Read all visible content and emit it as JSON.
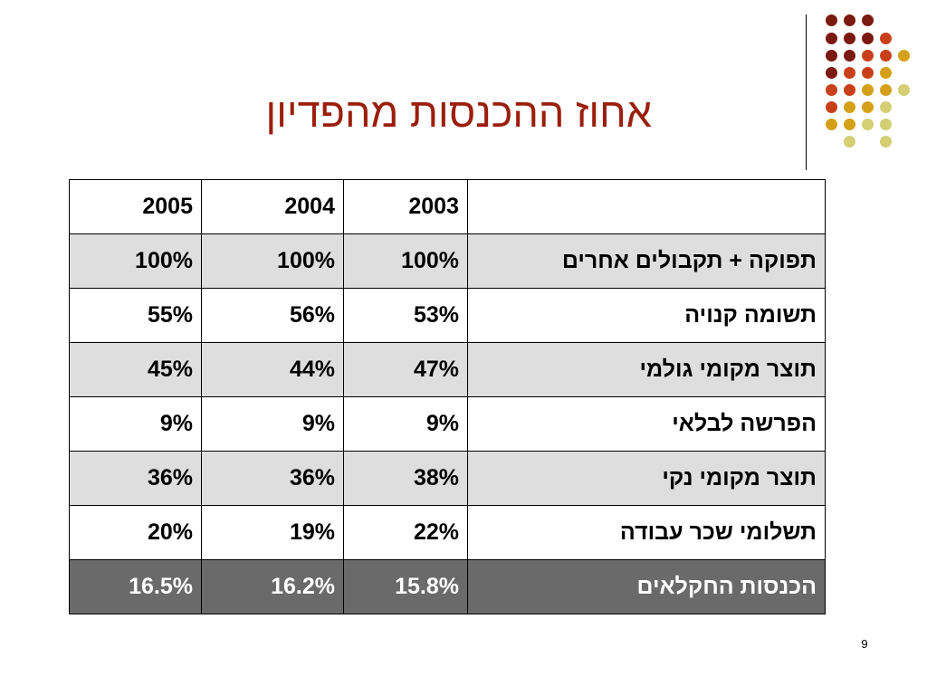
{
  "slide": {
    "title": "אחוז ההכנסות מהפדיון",
    "page_number": "9"
  },
  "colors": {
    "title": "#9a1f0c",
    "dots": [
      "#7b1a10",
      "#c8401a",
      "#d4a017",
      "#d3cf72"
    ],
    "row_shade": "#dedede",
    "row_total": "#6a6a6a"
  },
  "table": {
    "headers": [
      "2005",
      "2004",
      "2003",
      ""
    ],
    "rows": [
      {
        "label": "תפוקה + תקבולים אחרים",
        "y2003": "100%",
        "y2004": "100%",
        "y2005": "100%"
      },
      {
        "label": "תשומה קנויה",
        "y2003": "53%",
        "y2004": "56%",
        "y2005": "55%"
      },
      {
        "label": "תוצר מקומי גולמי",
        "y2003": "47%",
        "y2004": "44%",
        "y2005": "45%"
      },
      {
        "label": "הפרשה לבלאי",
        "y2003": "9%",
        "y2004": "9%",
        "y2005": "9%"
      },
      {
        "label": "תוצר מקומי נקי",
        "y2003": "38%",
        "y2004": "36%",
        "y2005": "36%"
      },
      {
        "label": "תשלומי שכר עבודה",
        "y2003": "22%",
        "y2004": "19%",
        "y2005": "20%"
      },
      {
        "label": "הכנסות החקלאים",
        "y2003": "15.8%",
        "y2004": "16.2%",
        "y2005": "16.5%"
      }
    ]
  }
}
